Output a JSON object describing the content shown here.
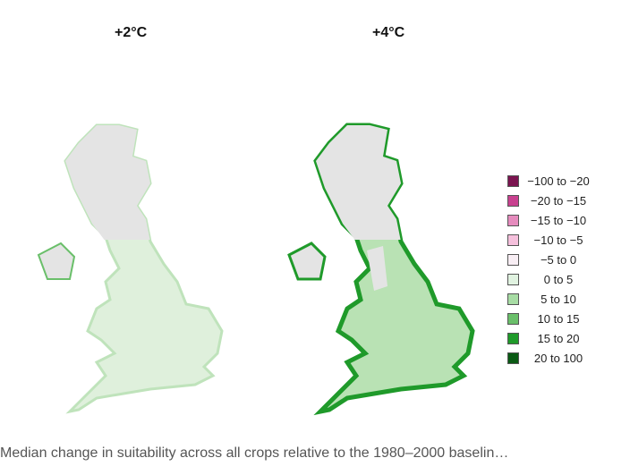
{
  "maps": [
    {
      "title": "+2°C",
      "scenario": "warming-2"
    },
    {
      "title": "+4°C",
      "scenario": "warming-4"
    }
  ],
  "legend": {
    "items": [
      {
        "label": "−100 to −20",
        "color": "#7b1450"
      },
      {
        "label": "−20 to −15",
        "color": "#c8418f"
      },
      {
        "label": "−15 to −10",
        "color": "#e58bbd"
      },
      {
        "label": "−10 to −5",
        "color": "#f5c0dc"
      },
      {
        "label": "−5 to 0",
        "color": "#f8eef4"
      },
      {
        "label": "0 to 5",
        "color": "#e0f2e0"
      },
      {
        "label": "5 to 10",
        "color": "#a7dca4"
      },
      {
        "label": "10 to 15",
        "color": "#6abf6a"
      },
      {
        "label": "15 to 20",
        "color": "#1f9a2a"
      },
      {
        "label": "20 to 100",
        "color": "#0a5a14"
      }
    ]
  },
  "caption": "Median change in suitability across all crops relative to the 1980–2000 baselin…"
}
